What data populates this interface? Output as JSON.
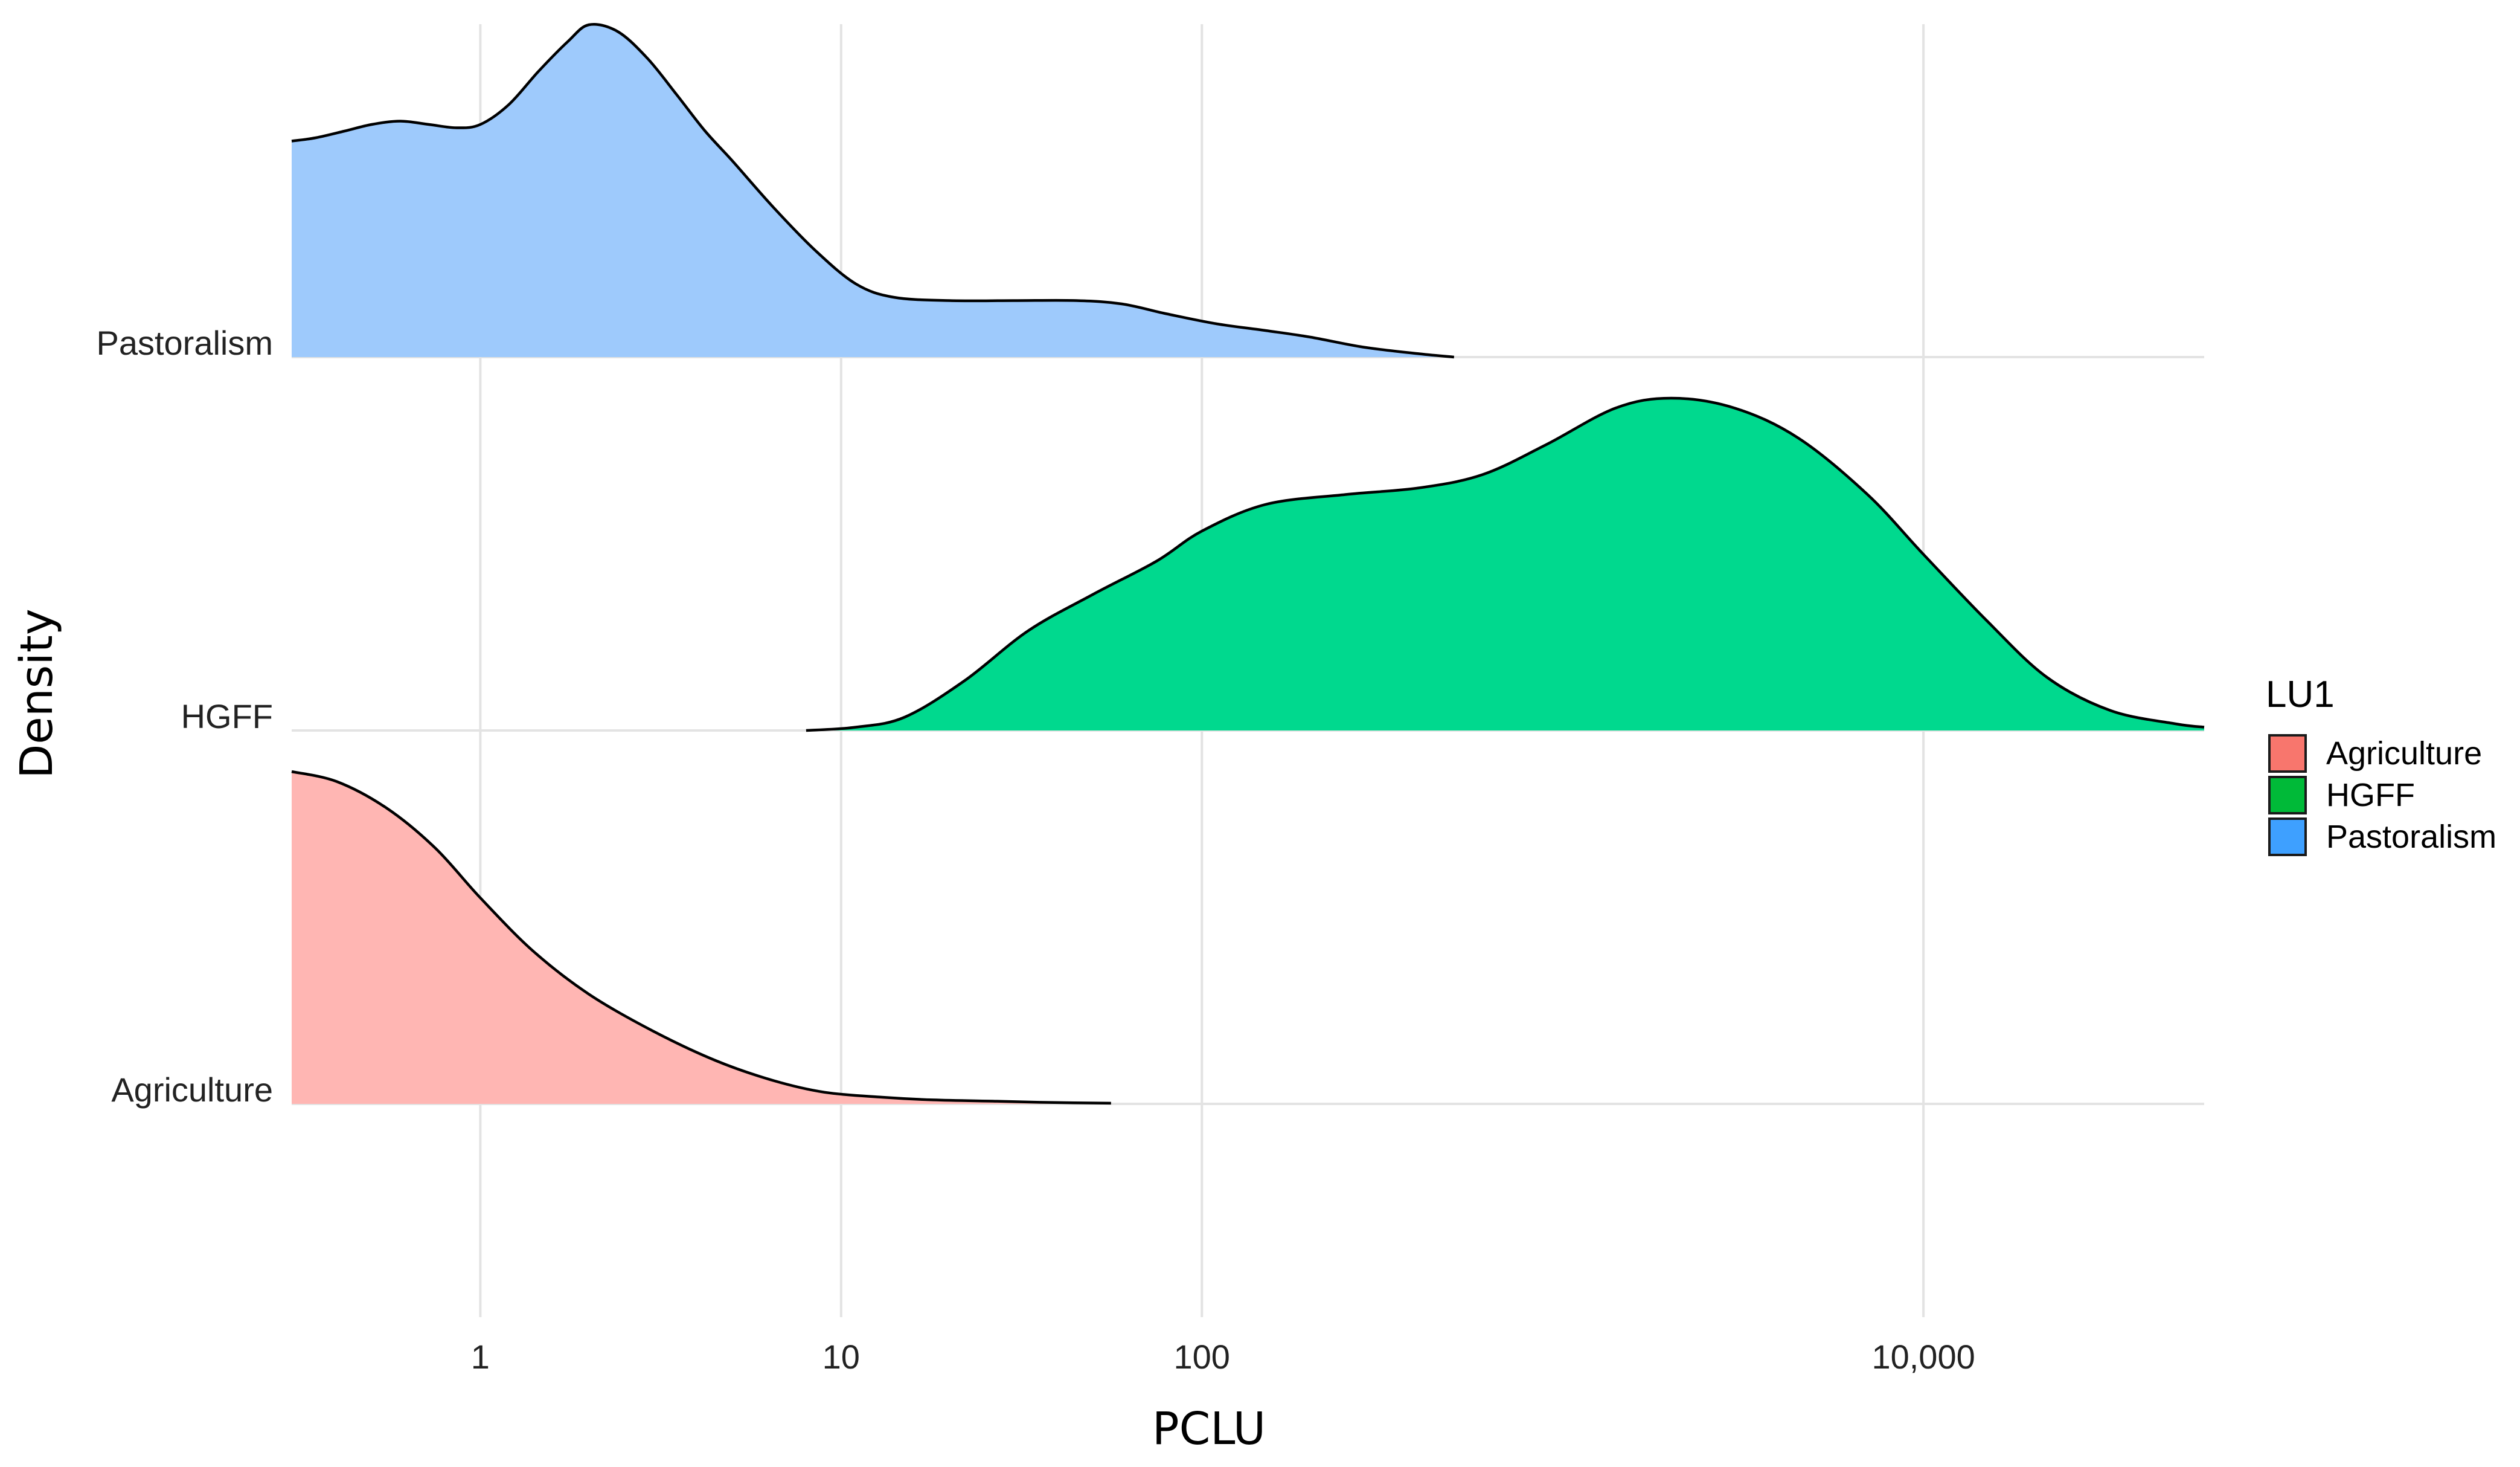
{
  "chart_data": {
    "type": "ridgeline",
    "title": "",
    "xlabel": "PCLU",
    "ylabel": "Density",
    "x_scale": "log10",
    "xlim": [
      0.3,
      60000
    ],
    "x_ticks": [
      {
        "value": 1,
        "label": "1"
      },
      {
        "value": 10,
        "label": "10"
      },
      {
        "value": 100,
        "label": "100"
      },
      {
        "value": 10000,
        "label": "10,000"
      }
    ],
    "grid": true,
    "legend": {
      "title": "LU1",
      "placement": "right",
      "entries": [
        {
          "label": "Agriculture",
          "color": "#F8766D"
        },
        {
          "label": "HGFF",
          "color": "#00BA38"
        },
        {
          "label": "Pastoralism",
          "color": "#3EA0FF"
        }
      ]
    },
    "rows": [
      {
        "label": "Pastoralism",
        "fill": "#9ECAFC"
      },
      {
        "label": "HGFF",
        "fill": "#00D98E"
      },
      {
        "label": "Agriculture",
        "fill": "#FFB6B3"
      }
    ],
    "series": [
      {
        "name": "Agriculture",
        "x": [
          0.3,
          0.4,
          0.55,
          0.75,
          1.0,
          1.4,
          2.0,
          3.0,
          4.5,
          6.5,
          9.0,
          13,
          18,
          27,
          39,
          56
        ],
        "density": [
          1.0,
          0.97,
          0.89,
          0.77,
          0.62,
          0.46,
          0.33,
          0.22,
          0.13,
          0.07,
          0.035,
          0.02,
          0.012,
          0.008,
          0.004,
          0.002
        ]
      },
      {
        "name": "HGFF",
        "x": [
          8.0,
          11,
          15,
          22,
          33,
          50,
          75,
          100,
          150,
          250,
          400,
          600,
          900,
          1400,
          2000,
          3000,
          4500,
          7000,
          10000,
          15000,
          22000,
          33000,
          50000,
          60000
        ],
        "density": [
          0.0,
          0.01,
          0.04,
          0.15,
          0.3,
          0.41,
          0.51,
          0.6,
          0.68,
          0.71,
          0.73,
          0.77,
          0.86,
          0.97,
          1.0,
          0.97,
          0.88,
          0.71,
          0.53,
          0.33,
          0.16,
          0.06,
          0.02,
          0.01
        ]
      },
      {
        "name": "Pastoralism",
        "x": [
          0.3,
          0.35,
          0.42,
          0.5,
          0.6,
          0.72,
          0.86,
          1.0,
          1.2,
          1.45,
          1.75,
          2.0,
          2.4,
          2.9,
          3.5,
          4.2,
          5.0,
          6.5,
          8.5,
          11,
          14,
          20,
          30,
          45,
          60,
          80,
          110,
          150,
          200,
          280,
          400,
          500
        ],
        "density": [
          0.65,
          0.66,
          0.68,
          0.7,
          0.71,
          0.7,
          0.69,
          0.7,
          0.76,
          0.86,
          0.95,
          1.0,
          0.98,
          0.9,
          0.79,
          0.68,
          0.59,
          0.45,
          0.32,
          0.22,
          0.18,
          0.17,
          0.17,
          0.17,
          0.16,
          0.13,
          0.1,
          0.08,
          0.06,
          0.03,
          0.01,
          0.0
        ]
      }
    ]
  }
}
